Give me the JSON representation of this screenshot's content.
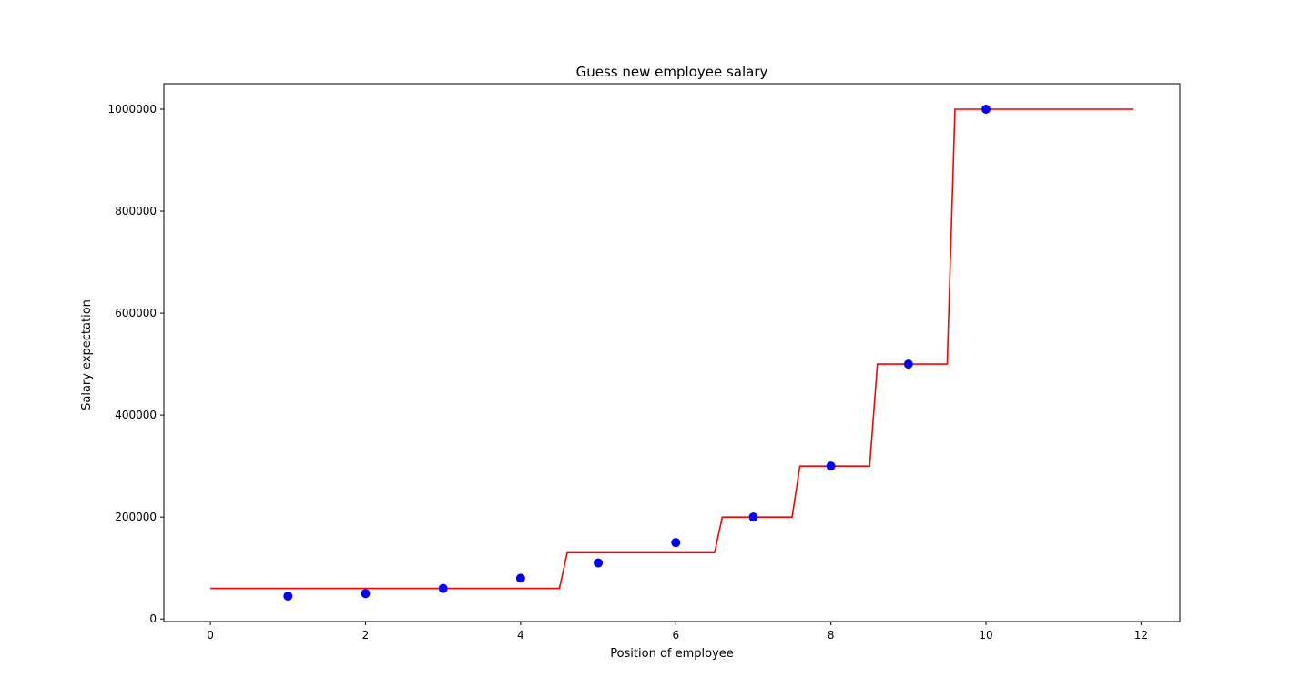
{
  "chart_data": {
    "type": "scatter",
    "title": "Guess new employee salary",
    "xlabel": "Position of employee",
    "ylabel": "Salary expectation",
    "xlim": [
      -0.6,
      12.5
    ],
    "ylim": [
      -5000,
      1050000
    ],
    "xticks": [
      0,
      2,
      4,
      6,
      8,
      10,
      12
    ],
    "yticks": [
      0,
      200000,
      400000,
      600000,
      800000,
      1000000
    ],
    "xtick_labels": [
      "0",
      "2",
      "4",
      "6",
      "8",
      "10",
      "12"
    ],
    "ytick_labels": [
      "0",
      "200000",
      "400000",
      "600000",
      "800000",
      "1000000"
    ],
    "grid": false,
    "series": [
      {
        "kind": "scatter",
        "color": "#0000ff",
        "x": [
          1,
          2,
          3,
          4,
          5,
          6,
          7,
          8,
          9,
          10
        ],
        "y": [
          45000,
          50000,
          60000,
          80000,
          110000,
          150000,
          200000,
          300000,
          500000,
          1000000
        ]
      },
      {
        "kind": "line",
        "color": "#ff0000",
        "x": [
          0,
          4.5,
          4.6,
          6.5,
          6.6,
          7.5,
          7.6,
          8.5,
          8.6,
          9.5,
          9.6,
          11.9
        ],
        "y": [
          60000,
          60000,
          130000,
          130000,
          200000,
          200000,
          300000,
          300000,
          500000,
          500000,
          1000000,
          1000000
        ]
      }
    ]
  }
}
